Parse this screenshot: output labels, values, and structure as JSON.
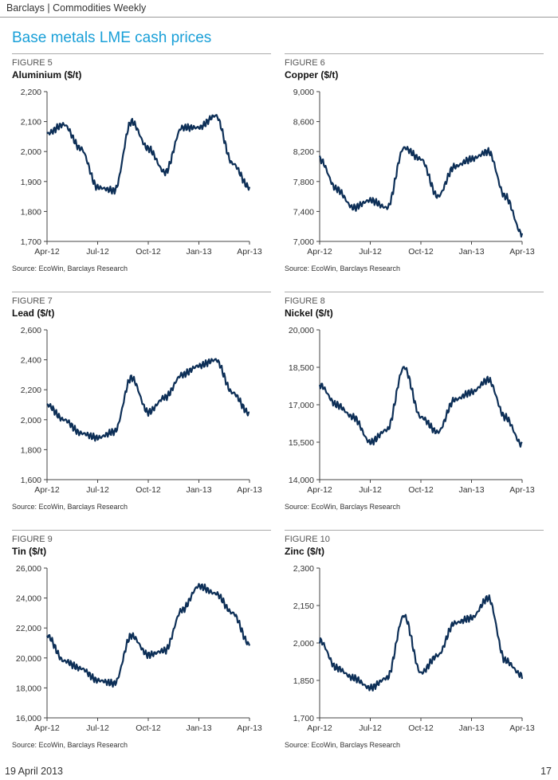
{
  "header": {
    "text": "Barclays | Commodities Weekly"
  },
  "section_title": "Base metals LME cash prices",
  "footer": {
    "date": "19 April 2013",
    "page": "17"
  },
  "line_color": "#0d2f57",
  "figures": [
    {
      "number": "FIGURE 5",
      "title": "Aluminium ($/t)",
      "source": "Source: EcoWin, Barclays Research"
    },
    {
      "number": "FIGURE 6",
      "title": "Copper ($/t)",
      "source": "Source: EcoWin, Barclays Research"
    },
    {
      "number": "FIGURE 7",
      "title": "Lead ($/t)",
      "source": "Source: EcoWin, Barclays Research"
    },
    {
      "number": "FIGURE 8",
      "title": "Nickel ($/t)",
      "source": "Source: EcoWin, Barclays Research"
    },
    {
      "number": "FIGURE 9",
      "title": "Tin ($/t)",
      "source": "Source: EcoWin, Barclays Research"
    },
    {
      "number": "FIGURE 10",
      "title": "Zinc ($/t)",
      "source": "Source: EcoWin, Barclays Research"
    }
  ],
  "chart_data": [
    {
      "type": "line",
      "title": "Aluminium ($/t)",
      "x_ticks": [
        "Apr-12",
        "Jul-12",
        "Oct-12",
        "Jan-13",
        "Apr-13"
      ],
      "y_ticks": [
        "1,700",
        "1,800",
        "1,900",
        "2,000",
        "2,100",
        "2,200"
      ],
      "ylim": [
        1700,
        2200
      ],
      "x": [
        "Apr-12",
        "May-12",
        "Jun-12",
        "Jul-12",
        "Aug-12",
        "Sep-12",
        "Oct-12",
        "Nov-12",
        "Dec-12",
        "Jan-13",
        "Feb-13",
        "Mar-13",
        "Apr-13"
      ],
      "x_axis_ticks": [
        0,
        3,
        6,
        9,
        12
      ],
      "values": [
        2060,
        2090,
        2010,
        1880,
        1870,
        2100,
        2010,
        1930,
        2080,
        2080,
        2120,
        1960,
        1880
      ]
    },
    {
      "type": "line",
      "title": "Copper ($/t)",
      "x_ticks": [
        "Apr-12",
        "Jul-12",
        "Oct-12",
        "Jan-13",
        "Apr-13"
      ],
      "y_ticks": [
        "7,000",
        "7,400",
        "7,800",
        "8,200",
        "8,600",
        "9,000"
      ],
      "ylim": [
        7000,
        9000
      ],
      "x": [
        "Apr-12",
        "May-12",
        "Jun-12",
        "Jul-12",
        "Aug-12",
        "Sep-12",
        "Oct-12",
        "Nov-12",
        "Dec-12",
        "Jan-13",
        "Feb-13",
        "Mar-13",
        "Apr-13"
      ],
      "x_axis_ticks": [
        0,
        3,
        6,
        9,
        12
      ],
      "values": [
        8100,
        7700,
        7450,
        7550,
        7450,
        8250,
        8100,
        7600,
        8000,
        8100,
        8200,
        7600,
        7100
      ]
    },
    {
      "type": "line",
      "title": "Lead ($/t)",
      "x_ticks": [
        "Apr-12",
        "Jul-12",
        "Oct-12",
        "Jan-13",
        "Apr-13"
      ],
      "y_ticks": [
        "1,600",
        "1,800",
        "2,000",
        "2,200",
        "2,400",
        "2,600"
      ],
      "ylim": [
        1600,
        2600
      ],
      "x": [
        "Apr-12",
        "May-12",
        "Jun-12",
        "Jul-12",
        "Aug-12",
        "Sep-12",
        "Oct-12",
        "Nov-12",
        "Dec-12",
        "Jan-13",
        "Feb-13",
        "Mar-13",
        "Apr-13"
      ],
      "x_axis_ticks": [
        0,
        3,
        6,
        9,
        12
      ],
      "values": [
        2100,
        2000,
        1910,
        1880,
        1920,
        2280,
        2050,
        2150,
        2300,
        2360,
        2400,
        2180,
        2040
      ]
    },
    {
      "type": "line",
      "title": "Nickel ($/t)",
      "x_ticks": [
        "Apr-12",
        "Jul-12",
        "Oct-12",
        "Jan-13",
        "Apr-13"
      ],
      "y_ticks": [
        "14,000",
        "15,500",
        "17,000",
        "18,500",
        "20,000"
      ],
      "ylim": [
        14000,
        20000
      ],
      "x": [
        "Apr-12",
        "May-12",
        "Jun-12",
        "Jul-12",
        "Aug-12",
        "Sep-12",
        "Oct-12",
        "Nov-12",
        "Dec-12",
        "Jan-13",
        "Feb-13",
        "Mar-13",
        "Apr-13"
      ],
      "x_axis_ticks": [
        0,
        3,
        6,
        9,
        12
      ],
      "values": [
        17800,
        17000,
        16500,
        15500,
        16000,
        18500,
        16500,
        15900,
        17200,
        17500,
        18000,
        16500,
        15400
      ]
    },
    {
      "type": "line",
      "title": "Tin ($/t)",
      "x_ticks": [
        "Apr-12",
        "Jul-12",
        "Oct-12",
        "Jan-13",
        "Apr-13"
      ],
      "y_ticks": [
        "16,000",
        "18,000",
        "20,000",
        "22,000",
        "24,000",
        "26,000"
      ],
      "ylim": [
        16000,
        26000
      ],
      "x": [
        "Apr-12",
        "May-12",
        "Jun-12",
        "Jul-12",
        "Aug-12",
        "Sep-12",
        "Oct-12",
        "Nov-12",
        "Dec-12",
        "Jan-13",
        "Feb-13",
        "Mar-13",
        "Apr-13"
      ],
      "x_axis_ticks": [
        0,
        3,
        6,
        9,
        12
      ],
      "values": [
        21500,
        19800,
        19300,
        18500,
        18300,
        21500,
        20200,
        20500,
        23200,
        24800,
        24300,
        23000,
        20900
      ]
    },
    {
      "type": "line",
      "title": "Zinc ($/t)",
      "x_ticks": [
        "Apr-12",
        "Jul-12",
        "Oct-12",
        "Jan-13",
        "Apr-13"
      ],
      "y_ticks": [
        "1,700",
        "1,850",
        "2,000",
        "2,150",
        "2,300"
      ],
      "ylim": [
        1700,
        2300
      ],
      "x": [
        "Apr-12",
        "May-12",
        "Jun-12",
        "Jul-12",
        "Aug-12",
        "Sep-12",
        "Oct-12",
        "Nov-12",
        "Dec-12",
        "Jan-13",
        "Feb-13",
        "Mar-13",
        "Apr-13"
      ],
      "x_axis_ticks": [
        0,
        3,
        6,
        9,
        12
      ],
      "values": [
        2010,
        1900,
        1860,
        1820,
        1860,
        2110,
        1880,
        1950,
        2080,
        2100,
        2180,
        1930,
        1870
      ]
    }
  ]
}
